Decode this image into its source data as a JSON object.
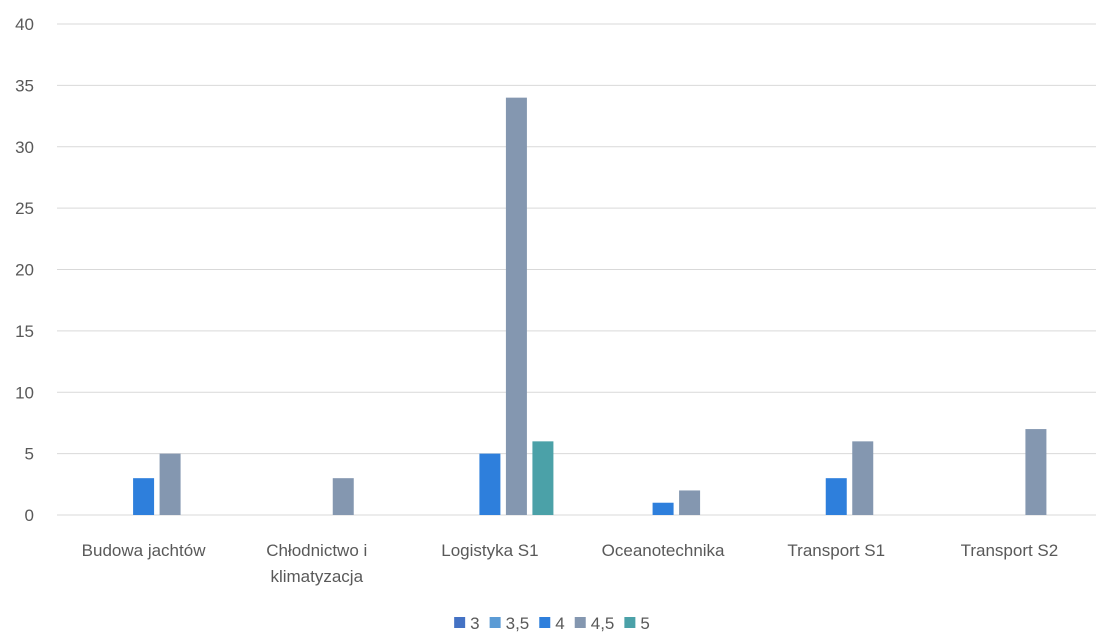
{
  "chart_data": {
    "type": "bar",
    "categories": [
      "Budowa jachtów",
      "Chłodnictwo i klimatyzacja",
      "Logistyka S1",
      "Oceanotechnika",
      "Transport S1",
      "Transport S2"
    ],
    "category_lines": [
      [
        "Budowa jachtów"
      ],
      [
        "Chłodnictwo i",
        "klimatyzacja"
      ],
      [
        "Logistyka S1"
      ],
      [
        "Oceanotechnika"
      ],
      [
        "Transport S1"
      ],
      [
        "Transport S2"
      ]
    ],
    "series": [
      {
        "name": "3",
        "color": "#4472C4",
        "values": [
          0,
          0,
          0,
          0,
          0,
          0
        ]
      },
      {
        "name": "3,5",
        "color": "#5B9BD5",
        "values": [
          0,
          0,
          0,
          0,
          0,
          0
        ]
      },
      {
        "name": "4",
        "color": "#2E7FDC",
        "values": [
          3,
          0,
          5,
          1,
          3,
          0
        ]
      },
      {
        "name": "4,5",
        "color": "#8497B0",
        "values": [
          5,
          3,
          34,
          2,
          6,
          7
        ]
      },
      {
        "name": "5",
        "color": "#4BA1A8",
        "values": [
          0,
          0,
          6,
          0,
          0,
          0
        ]
      }
    ],
    "ylim": [
      0,
      40
    ],
    "yticks": [
      "0",
      "5",
      "10",
      "15",
      "20",
      "25",
      "30",
      "35",
      "40"
    ],
    "grid": true,
    "legend_position": "bottom",
    "title": "",
    "xlabel": "",
    "ylabel": ""
  }
}
